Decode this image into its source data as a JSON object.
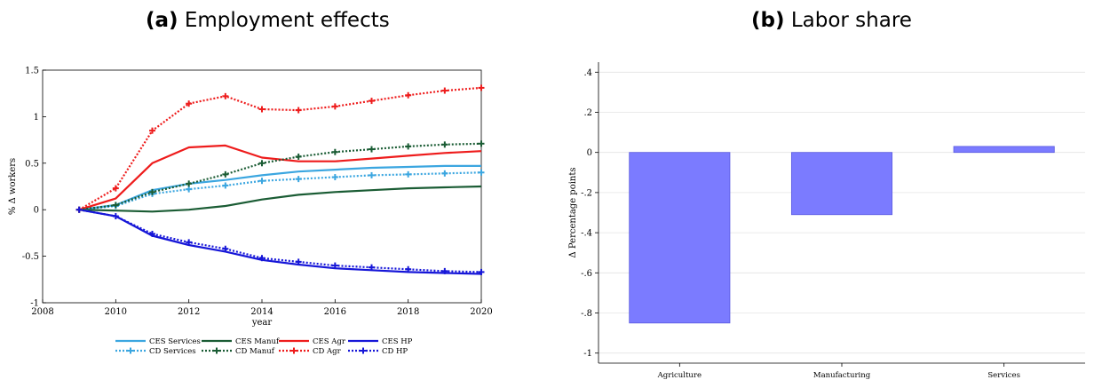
{
  "panel_a": {
    "letter": "(a)",
    "title": "Employment effects"
  },
  "panel_b": {
    "letter": "(b)",
    "title": "Labor share"
  },
  "chart_data": [
    {
      "type": "line",
      "title": "Employment effects",
      "xlabel": "year",
      "ylabel": "% Δ workers",
      "xlim": [
        2008,
        2020
      ],
      "ylim": [
        -1,
        1.5
      ],
      "x_ticks": [
        "2008",
        "2010",
        "2012",
        "2014",
        "2016",
        "2018",
        "2020"
      ],
      "y_ticks": [
        "-1",
        "-0.5",
        "0",
        "0.5",
        "1",
        "1.5"
      ],
      "x": [
        2009,
        2010,
        2011,
        2012,
        2013,
        2014,
        2015,
        2016,
        2017,
        2018,
        2019,
        2020
      ],
      "legend_position": "bottom",
      "series": [
        {
          "name": "CES Services",
          "color": "#3ba6e0",
          "style": "solid",
          "marker": false,
          "values": [
            0,
            0.05,
            0.21,
            0.28,
            0.32,
            0.37,
            0.41,
            0.43,
            0.45,
            0.46,
            0.47,
            0.47
          ]
        },
        {
          "name": "CES Manuf",
          "color": "#1a5c34",
          "style": "solid",
          "marker": false,
          "values": [
            0,
            -0.01,
            -0.02,
            0.0,
            0.04,
            0.11,
            0.16,
            0.19,
            0.21,
            0.23,
            0.24,
            0.25
          ]
        },
        {
          "name": "CES Agr",
          "color": "#ee1c1c",
          "style": "solid",
          "marker": false,
          "values": [
            0,
            0.12,
            0.5,
            0.67,
            0.69,
            0.56,
            0.52,
            0.52,
            0.55,
            0.58,
            0.61,
            0.63
          ]
        },
        {
          "name": "CES HP",
          "color": "#1616d8",
          "style": "solid",
          "marker": false,
          "values": [
            0,
            -0.07,
            -0.28,
            -0.38,
            -0.45,
            -0.54,
            -0.59,
            -0.63,
            -0.65,
            -0.67,
            -0.68,
            -0.69
          ]
        },
        {
          "name": "CD Services",
          "color": "#3ba6e0",
          "style": "dotted",
          "marker": true,
          "values": [
            0,
            0.04,
            0.17,
            0.22,
            0.26,
            0.31,
            0.33,
            0.35,
            0.37,
            0.38,
            0.39,
            0.4
          ]
        },
        {
          "name": "CD Manuf",
          "color": "#1a5c34",
          "style": "dotted",
          "marker": true,
          "values": [
            0,
            0.05,
            0.19,
            0.28,
            0.38,
            0.5,
            0.57,
            0.62,
            0.65,
            0.68,
            0.7,
            0.71
          ]
        },
        {
          "name": "CD Agr",
          "color": "#ee1c1c",
          "style": "dotted",
          "marker": true,
          "values": [
            0,
            0.23,
            0.85,
            1.14,
            1.22,
            1.08,
            1.07,
            1.11,
            1.17,
            1.23,
            1.28,
            1.31
          ]
        },
        {
          "name": "CD HP",
          "color": "#1616d8",
          "style": "dotted",
          "marker": true,
          "values": [
            0,
            -0.07,
            -0.26,
            -0.35,
            -0.42,
            -0.52,
            -0.56,
            -0.6,
            -0.62,
            -0.64,
            -0.66,
            -0.67
          ]
        }
      ]
    },
    {
      "type": "bar",
      "title": "Labor share",
      "ylabel": "Δ Percentage points",
      "categories": [
        "Agriculture",
        "Manufacturing",
        "Services"
      ],
      "values": [
        -0.85,
        -0.31,
        0.03
      ],
      "ylim": [
        -1.05,
        0.45
      ],
      "y_ticks": [
        "-1",
        "-.8",
        "-.6",
        "-.4",
        "-.2",
        "0",
        ".2",
        ".4"
      ],
      "bar_color": "#7b7bff",
      "grid": true
    }
  ]
}
